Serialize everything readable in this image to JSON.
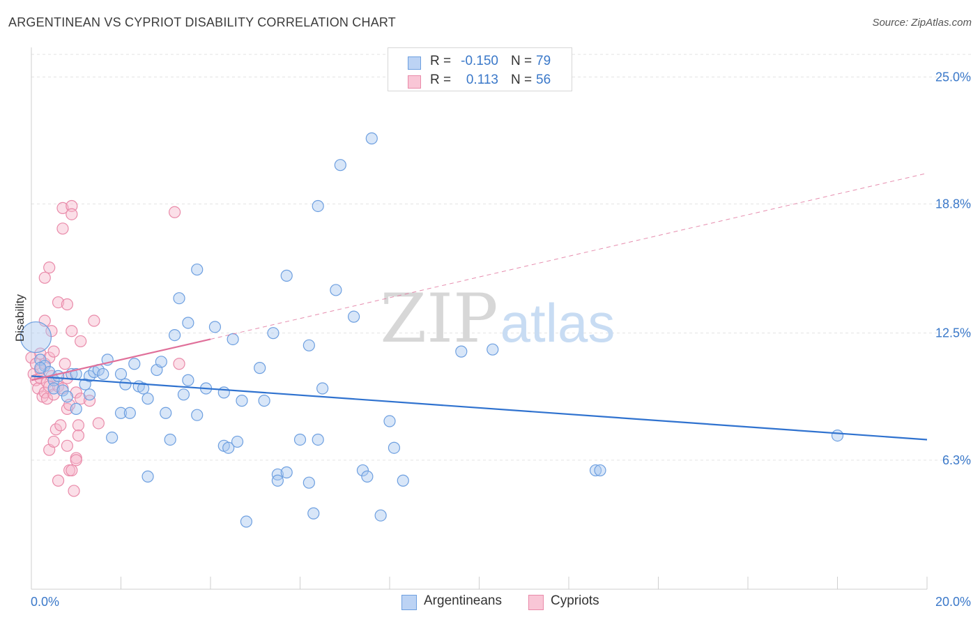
{
  "title": "ARGENTINEAN VS CYPRIOT DISABILITY CORRELATION CHART",
  "source": "Source: ZipAtlas.com",
  "watermark": {
    "zip": "ZIP",
    "atlas": "atlas"
  },
  "legend": {
    "rows": [
      {
        "r_label": "R =",
        "r_value": "-0.150",
        "n_label": "N =",
        "n_value": "79"
      },
      {
        "r_label": "R =",
        "r_value": "0.113",
        "n_label": "N =",
        "n_value": "56"
      }
    ]
  },
  "bottom_legend": [
    "Argentineans",
    "Cypriots"
  ],
  "colors": {
    "blue_fill": "#a9c8f0",
    "blue_stroke": "#6d9fe0",
    "blue_line": "#2f72cf",
    "pink_fill": "#f7b8cc",
    "pink_stroke": "#e98aa9",
    "pink_line": "#e0709a",
    "tick_text": "#3a78c9"
  },
  "chart_data": {
    "type": "scatter",
    "title": "ARGENTINEAN VS CYPRIOT DISABILITY CORRELATION CHART",
    "xlabel": "",
    "ylabel": "Disability",
    "xlim": [
      0,
      20
    ],
    "ylim": [
      0,
      26.1
    ],
    "x_tick_labels": [
      "0.0%",
      "20.0%"
    ],
    "y_ticks": [
      6.3,
      12.5,
      18.8,
      25.0
    ],
    "y_tick_labels": [
      "6.3%",
      "12.5%",
      "18.8%",
      "25.0%"
    ],
    "grid": true,
    "series": [
      {
        "name": "Argentineans",
        "trendline": {
          "x": [
            0,
            20
          ],
          "y": [
            10.4,
            7.3
          ]
        },
        "points": [
          [
            0.1,
            12.3
          ],
          [
            0.2,
            11.2
          ],
          [
            0.3,
            10.9
          ],
          [
            0.4,
            10.6
          ],
          [
            0.5,
            10.2
          ],
          [
            0.5,
            9.8
          ],
          [
            0.6,
            10.4
          ],
          [
            0.7,
            9.7
          ],
          [
            0.8,
            9.4
          ],
          [
            0.9,
            10.5
          ],
          [
            1.0,
            8.8
          ],
          [
            1.0,
            10.5
          ],
          [
            1.2,
            10.0
          ],
          [
            1.3,
            9.5
          ],
          [
            1.3,
            10.4
          ],
          [
            1.4,
            10.6
          ],
          [
            1.5,
            10.7
          ],
          [
            1.6,
            10.5
          ],
          [
            1.7,
            11.2
          ],
          [
            1.8,
            7.4
          ],
          [
            2.0,
            10.5
          ],
          [
            2.0,
            8.6
          ],
          [
            2.1,
            10.0
          ],
          [
            2.2,
            8.6
          ],
          [
            2.3,
            11.0
          ],
          [
            2.4,
            9.9
          ],
          [
            2.5,
            9.8
          ],
          [
            2.6,
            5.5
          ],
          [
            2.6,
            9.3
          ],
          [
            2.8,
            10.7
          ],
          [
            2.9,
            11.1
          ],
          [
            3.0,
            8.6
          ],
          [
            3.1,
            7.3
          ],
          [
            3.2,
            12.4
          ],
          [
            3.3,
            14.2
          ],
          [
            3.4,
            9.5
          ],
          [
            3.5,
            13.0
          ],
          [
            3.7,
            15.6
          ],
          [
            3.7,
            8.5
          ],
          [
            3.9,
            9.8
          ],
          [
            4.1,
            12.8
          ],
          [
            4.3,
            9.6
          ],
          [
            4.3,
            7.0
          ],
          [
            4.4,
            6.9
          ],
          [
            4.5,
            12.2
          ],
          [
            4.6,
            7.2
          ],
          [
            4.7,
            9.2
          ],
          [
            4.8,
            3.3
          ],
          [
            5.1,
            10.8
          ],
          [
            5.2,
            9.2
          ],
          [
            5.4,
            12.5
          ],
          [
            5.5,
            5.6
          ],
          [
            5.5,
            5.3
          ],
          [
            5.7,
            15.3
          ],
          [
            5.7,
            5.7
          ],
          [
            6.0,
            7.3
          ],
          [
            6.2,
            11.9
          ],
          [
            6.2,
            5.2
          ],
          [
            6.3,
            3.7
          ],
          [
            6.4,
            7.3
          ],
          [
            6.4,
            18.7
          ],
          [
            6.5,
            9.8
          ],
          [
            6.8,
            14.6
          ],
          [
            6.9,
            20.7
          ],
          [
            7.2,
            13.3
          ],
          [
            7.4,
            5.8
          ],
          [
            7.5,
            5.5
          ],
          [
            7.6,
            22.0
          ],
          [
            7.8,
            3.6
          ],
          [
            8.0,
            8.2
          ],
          [
            8.1,
            6.9
          ],
          [
            8.3,
            5.3
          ],
          [
            9.6,
            11.6
          ],
          [
            10.3,
            11.7
          ],
          [
            12.6,
            5.8
          ],
          [
            12.7,
            5.8
          ],
          [
            18.0,
            7.5
          ],
          [
            0.2,
            10.8
          ],
          [
            3.5,
            10.2
          ]
        ]
      },
      {
        "name": "Cypriots",
        "trendline": {
          "x": [
            0,
            4.0
          ],
          "y": [
            10.2,
            12.2
          ]
        },
        "trendline_ext": {
          "x": [
            4.0,
            20
          ],
          "y": [
            12.2,
            20.3
          ]
        },
        "points": [
          [
            0.0,
            11.3
          ],
          [
            0.05,
            10.5
          ],
          [
            0.1,
            10.2
          ],
          [
            0.1,
            11.0
          ],
          [
            0.15,
            9.8
          ],
          [
            0.2,
            10.7
          ],
          [
            0.2,
            11.5
          ],
          [
            0.2,
            10.3
          ],
          [
            0.25,
            9.4
          ],
          [
            0.3,
            11.0
          ],
          [
            0.3,
            13.1
          ],
          [
            0.3,
            15.2
          ],
          [
            0.3,
            9.6
          ],
          [
            0.35,
            10.1
          ],
          [
            0.35,
            9.3
          ],
          [
            0.4,
            15.7
          ],
          [
            0.4,
            9.9
          ],
          [
            0.4,
            11.3
          ],
          [
            0.4,
            6.8
          ],
          [
            0.45,
            10.4
          ],
          [
            0.45,
            12.6
          ],
          [
            0.5,
            11.6
          ],
          [
            0.5,
            9.5
          ],
          [
            0.5,
            7.2
          ],
          [
            0.55,
            7.8
          ],
          [
            0.6,
            14.0
          ],
          [
            0.6,
            5.3
          ],
          [
            0.6,
            9.9
          ],
          [
            0.65,
            8.0
          ],
          [
            0.7,
            9.8
          ],
          [
            0.7,
            17.6
          ],
          [
            0.7,
            18.6
          ],
          [
            0.75,
            11.0
          ],
          [
            0.8,
            10.3
          ],
          [
            0.8,
            13.9
          ],
          [
            0.8,
            7.0
          ],
          [
            0.8,
            8.8
          ],
          [
            0.85,
            5.8
          ],
          [
            0.85,
            9.0
          ],
          [
            0.9,
            18.7
          ],
          [
            0.9,
            12.6
          ],
          [
            0.9,
            5.8
          ],
          [
            0.9,
            18.3
          ],
          [
            0.95,
            4.8
          ],
          [
            1.0,
            6.4
          ],
          [
            1.0,
            9.6
          ],
          [
            1.0,
            6.3
          ],
          [
            1.05,
            8.0
          ],
          [
            1.05,
            7.5
          ],
          [
            1.1,
            12.1
          ],
          [
            1.1,
            9.3
          ],
          [
            1.3,
            9.2
          ],
          [
            1.4,
            13.1
          ],
          [
            1.5,
            8.1
          ],
          [
            3.2,
            18.4
          ],
          [
            3.3,
            11.0
          ]
        ]
      }
    ]
  }
}
